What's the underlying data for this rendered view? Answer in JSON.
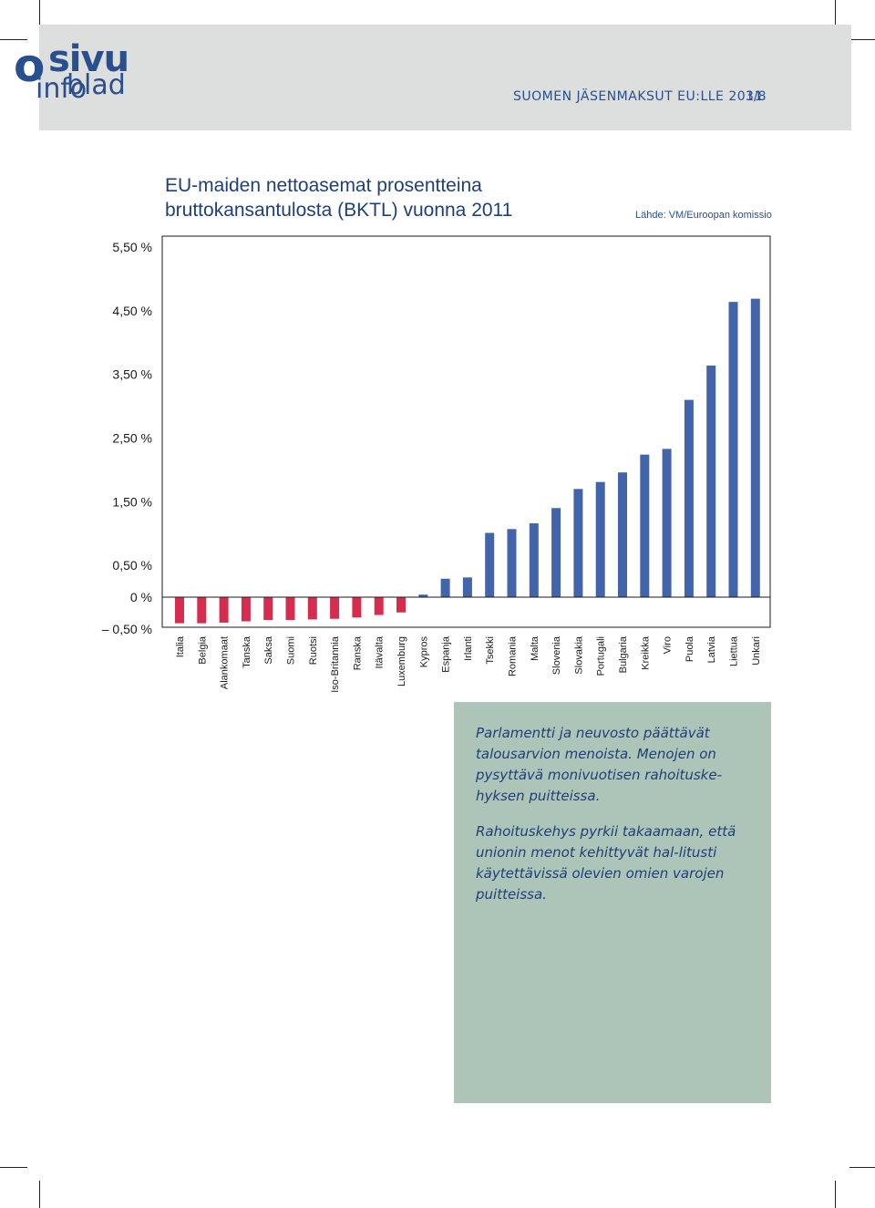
{
  "header": {
    "logo": {
      "lead": "o",
      "brand": "sivu",
      "sub_a": "info",
      "sub_b": "blad"
    },
    "title": "SUOMEN JÄSENMAKSUT EU:LLE 2011",
    "page": "3/8"
  },
  "colors": {
    "positive": "#4264aa",
    "negative": "#d62d4e",
    "brand": "#2a4f8f"
  },
  "chart_data": {
    "type": "bar",
    "title_lines": [
      "EU-maiden nettoasemat prosentteina",
      "bruttokansantulosta (BKTL) vuonna 2011"
    ],
    "source": "Lähde: VM/Euroopan komissio",
    "xlabel": "",
    "ylabel": "",
    "ylim": [
      -0.5,
      5.7
    ],
    "yticks": [
      {
        "value": 5.5,
        "label": "5,50 %"
      },
      {
        "value": 4.5,
        "label": "4,50 %"
      },
      {
        "value": 3.5,
        "label": "3,50 %"
      },
      {
        "value": 2.5,
        "label": "2,50 %"
      },
      {
        "value": 1.5,
        "label": "1,50 %"
      },
      {
        "value": 0.5,
        "label": "0,50 %"
      },
      {
        "value": 0,
        "label": "0 %"
      },
      {
        "value": -0.5,
        "label": "– 0,50 %"
      }
    ],
    "grid": false,
    "categories": [
      "Italia",
      "Belgia",
      "Alankomaat",
      "Tanska",
      "Saksa",
      "Suomi",
      "Ruotsi",
      "Iso-Britannia",
      "Ranska",
      "Itävalta",
      "Luxemburg",
      "Kypros",
      "Espanja",
      "Irlanti",
      "Tsekki",
      "Romania",
      "Malta",
      "Slovenia",
      "Slovakia",
      "Portugali",
      "Bulgaria",
      "Kreikka",
      "Viro",
      "Puola",
      "Latvia",
      "Liettua",
      "Unkari"
    ],
    "values": [
      -0.41,
      -0.41,
      -0.4,
      -0.38,
      -0.36,
      -0.36,
      -0.35,
      -0.34,
      -0.32,
      -0.28,
      -0.24,
      0.04,
      0.29,
      0.31,
      1.01,
      1.07,
      1.16,
      1.4,
      1.7,
      1.81,
      1.96,
      2.24,
      2.33,
      3.1,
      3.64,
      4.64,
      4.69
    ]
  },
  "note": {
    "paragraph1": "Parlamentti ja neuvosto päättävät talousarvion menoista. Menojen on pysyttävä monivuotisen rahoituske-hyksen puitteissa.",
    "paragraph2": "Rahoituskehys pyrkii takaamaan, että unionin menot kehittyvät hal-litusti käytettävissä olevien omien varojen puitteissa."
  }
}
